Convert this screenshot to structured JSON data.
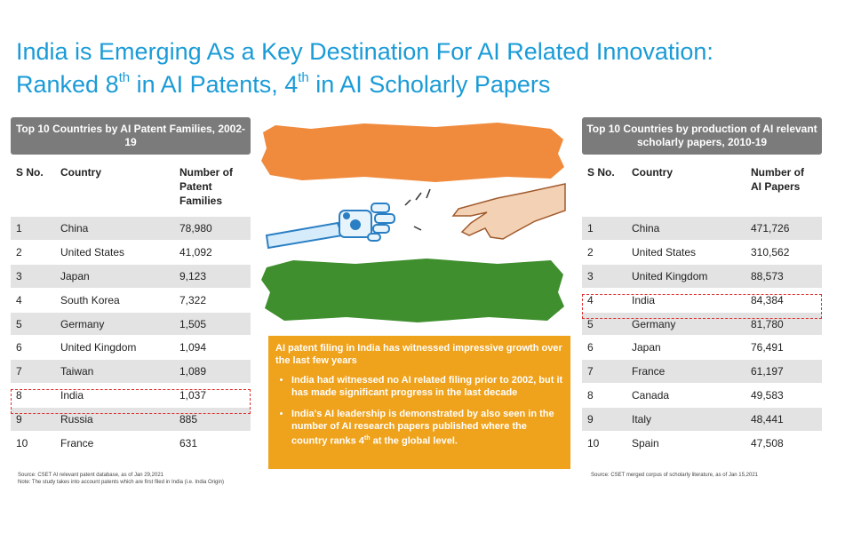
{
  "title": {
    "line1": "India is Emerging As a Key Destination For AI Related Innovation:",
    "line2_prefix": "Ranked 8",
    "line2_sup1": "th",
    "line2_mid": " in AI Patents, 4",
    "line2_sup2": "th",
    "line2_suffix": " in AI Scholarly Papers"
  },
  "left_table": {
    "heading": "Top 10 Countries by AI Patent Families, 2002-19",
    "columns": [
      "S No.",
      "Country",
      "Number of Patent Families"
    ],
    "rows": [
      [
        "1",
        "China",
        "78,980"
      ],
      [
        "2",
        "United States",
        "41,092"
      ],
      [
        "3",
        "Japan",
        "9,123"
      ],
      [
        "4",
        "South Korea",
        "7,322"
      ],
      [
        "5",
        "Germany",
        "1,505"
      ],
      [
        "6",
        "United Kingdom",
        "1,094"
      ],
      [
        "7",
        "Taiwan",
        "1,089"
      ],
      [
        "8",
        "India",
        "1,037"
      ],
      [
        "9",
        "Russia",
        "885"
      ],
      [
        "10",
        "France",
        "631"
      ]
    ],
    "highlight_row": 8,
    "source": "Source: CSET AI relevant patent database, as of Jan 29,2021",
    "note": "Note: The study takes into account patents which are first filed in India (i.e. India Origin)"
  },
  "right_table": {
    "heading": "Top 10 Countries by production of AI relevant scholarly papers, 2010-19",
    "columns": [
      "S No.",
      "Country",
      "Number of AI Papers"
    ],
    "rows": [
      [
        "1",
        "China",
        "471,726"
      ],
      [
        "2",
        "United States",
        "310,562"
      ],
      [
        "3",
        "United Kingdom",
        "88,573"
      ],
      [
        "4",
        "India",
        "84,384"
      ],
      [
        "5",
        "Germany",
        "81,780"
      ],
      [
        "6",
        "Japan",
        "76,491"
      ],
      [
        "7",
        "France",
        "61,197"
      ],
      [
        "8",
        "Canada",
        "49,583"
      ],
      [
        "9",
        "Italy",
        "48,441"
      ],
      [
        "10",
        "Spain",
        "47,508"
      ]
    ],
    "highlight_row": 4,
    "source": "Source: CSET merged corpus of scholarly literature, as of Jan 15,2021"
  },
  "infobox": {
    "headline": "AI patent filing in India has witnessed impressive growth over the last few years",
    "bullet1": "India had witnessed no AI related filing prior to 2002, but it has made significant progress in the last decade",
    "bullet2_prefix": "India's AI leadership is demonstrated by also seen in the number of AI research papers published where the country ranks 4",
    "bullet2_sup": "th",
    "bullet2_suffix": " at the global level."
  },
  "colors": {
    "title": "#1a9bd7",
    "saffron": "#f08a3c",
    "green": "#3f8f2e",
    "infobox": "#efa21b",
    "table_header": "#7b7b7b",
    "row_shade": "#e3e3e3",
    "highlight": "#e03030"
  },
  "icons": [
    "robot-hand-icon",
    "human-hand-icon"
  ]
}
